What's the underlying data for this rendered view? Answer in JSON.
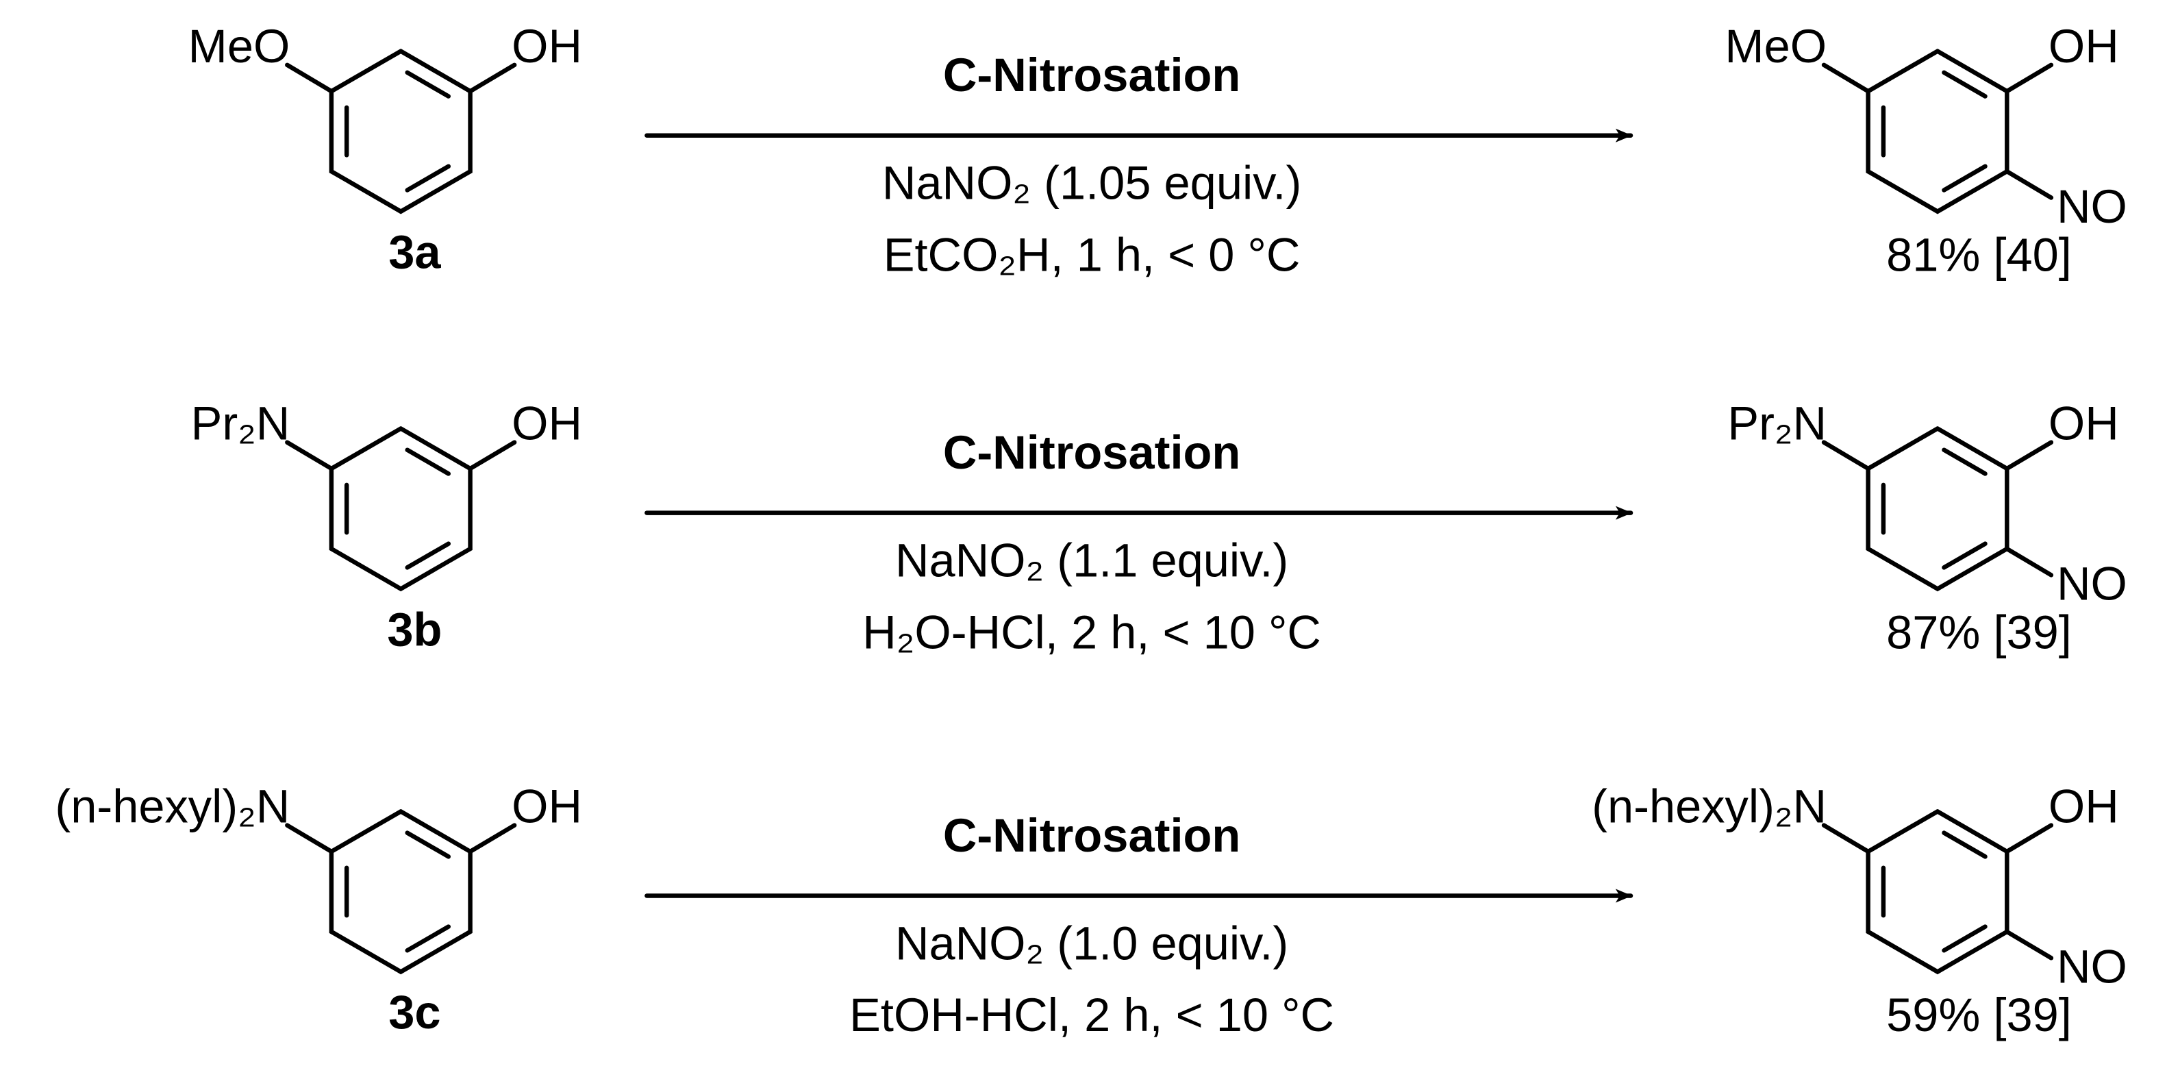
{
  "reactions": [
    {
      "reactant": {
        "substituent": "MeO",
        "hydroxyl": "OH",
        "label": "3a"
      },
      "arrow": {
        "title": "C-Nitrosation",
        "reagent": "NaNO₂ (1.05 equiv.)",
        "conditions": "EtCO₂H, 1 h, < 0 °C"
      },
      "product": {
        "substituent": "MeO",
        "hydroxyl": "OH",
        "nitroso": "NO",
        "yield": "81% [40]"
      }
    },
    {
      "reactant": {
        "substituent": "Pr₂N",
        "hydroxyl": "OH",
        "label": "3b"
      },
      "arrow": {
        "title": "C-Nitrosation",
        "reagent": "NaNO₂ (1.1 equiv.)",
        "conditions": "H₂O-HCl, 2 h, < 10 °C"
      },
      "product": {
        "substituent": "Pr₂N",
        "hydroxyl": "OH",
        "nitroso": "NO",
        "yield": "87% [39]"
      }
    },
    {
      "reactant": {
        "substituent": "(n-hexyl)₂N",
        "hydroxyl": "OH",
        "label": "3c"
      },
      "arrow": {
        "title": "C-Nitrosation",
        "reagent": "NaNO₂ (1.0 equiv.)",
        "conditions": "EtOH-HCl, 2 h, < 10 °C"
      },
      "product": {
        "substituent": "(n-hexyl)₂N",
        "hydroxyl": "OH",
        "nitroso": "NO",
        "yield": "59% [39]"
      }
    }
  ]
}
